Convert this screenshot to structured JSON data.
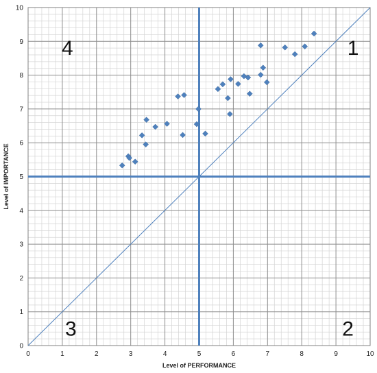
{
  "chart_data": {
    "type": "scatter",
    "title": "",
    "xlabel": "Level of PERFORMANCE",
    "ylabel": "Level of IMPORTANCE",
    "xlim": [
      0,
      10
    ],
    "ylim": [
      0,
      10
    ],
    "major_ticks": [
      0,
      1,
      2,
      3,
      4,
      5,
      6,
      7,
      8,
      9,
      10
    ],
    "minor_step": 0.2,
    "grid": true,
    "reference_lines": {
      "vertical_x": 5,
      "horizontal_y": 5,
      "diagonal": "y = x"
    },
    "quadrant_labels": [
      {
        "text": "1",
        "x": 9.5,
        "y": 8.8
      },
      {
        "text": "2",
        "x": 9.35,
        "y": 0.5
      },
      {
        "text": "3",
        "x": 1.25,
        "y": 0.5
      },
      {
        "text": "4",
        "x": 1.15,
        "y": 8.8
      }
    ],
    "series": [
      {
        "color": "#4F81BD",
        "marker": "diamond",
        "points": [
          [
            2.75,
            5.33
          ],
          [
            2.93,
            5.6
          ],
          [
            2.96,
            5.55
          ],
          [
            3.13,
            5.44
          ],
          [
            3.33,
            6.22
          ],
          [
            3.44,
            5.95
          ],
          [
            3.46,
            6.68
          ],
          [
            3.72,
            6.47
          ],
          [
            4.06,
            6.56
          ],
          [
            4.38,
            7.37
          ],
          [
            4.52,
            6.23
          ],
          [
            4.56,
            7.41
          ],
          [
            4.93,
            6.55
          ],
          [
            4.98,
            7.0
          ],
          [
            5.18,
            6.27
          ],
          [
            5.55,
            7.59
          ],
          [
            5.69,
            7.73
          ],
          [
            5.84,
            7.32
          ],
          [
            5.9,
            6.85
          ],
          [
            5.92,
            7.88
          ],
          [
            6.14,
            7.74
          ],
          [
            6.31,
            7.97
          ],
          [
            6.43,
            7.93
          ],
          [
            6.48,
            7.45
          ],
          [
            6.8,
            8.88
          ],
          [
            6.8,
            8.01
          ],
          [
            6.87,
            8.22
          ],
          [
            6.98,
            7.79
          ],
          [
            7.51,
            8.82
          ],
          [
            7.8,
            8.62
          ],
          [
            8.09,
            8.85
          ],
          [
            8.36,
            9.23
          ]
        ]
      }
    ]
  }
}
